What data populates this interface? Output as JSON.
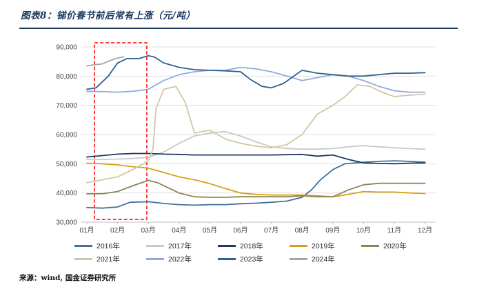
{
  "header": {
    "title": "图表8：锑价春节前后常有上涨（元/吨）"
  },
  "footer": {
    "source": "来源：wind, 国金证券研究所"
  },
  "chart_data": {
    "type": "line",
    "title": "锑价春节前后常有上涨（元/吨）",
    "xlabel": "",
    "ylabel": "",
    "x_ticks": [
      "01月",
      "02月",
      "03月",
      "04月",
      "05月",
      "06月",
      "07月",
      "08月",
      "09月",
      "10月",
      "11月",
      "12月"
    ],
    "y_ticks": [
      "30,000",
      "40,000",
      "50,000",
      "60,000",
      "70,000",
      "80,000",
      "90,000"
    ],
    "ylim": [
      30000,
      90000
    ],
    "xlim": [
      1,
      12.3
    ],
    "grid": "horizontal",
    "legend_position": "bottom",
    "highlight_box": {
      "x_from": 1.25,
      "x_to": 2.95,
      "color": "#FF0000",
      "style": "dashed"
    },
    "legend_rows": [
      [
        "2016年",
        "2017年",
        "2018年",
        "2019年",
        "2020年"
      ],
      [
        "2021年",
        "2022年",
        "2023年",
        "2024年"
      ]
    ],
    "series": [
      {
        "name": "2016年",
        "color": "#41719C",
        "points": [
          [
            1,
            35000
          ],
          [
            1.5,
            34800
          ],
          [
            2,
            35200
          ],
          [
            2.4,
            36800
          ],
          [
            3,
            37000
          ],
          [
            3.5,
            36400
          ],
          [
            4,
            36000
          ],
          [
            4.5,
            35800
          ],
          [
            5,
            36000
          ],
          [
            5.5,
            36000
          ],
          [
            6,
            36300
          ],
          [
            6.5,
            36500
          ],
          [
            7,
            36800
          ],
          [
            7.5,
            37200
          ],
          [
            8,
            38500
          ],
          [
            8.3,
            41000
          ],
          [
            8.6,
            44500
          ],
          [
            9,
            48000
          ],
          [
            9.4,
            50000
          ],
          [
            10,
            50500
          ],
          [
            10.5,
            50800
          ],
          [
            11,
            51000
          ],
          [
            11.5,
            50800
          ],
          [
            12,
            50500
          ]
        ]
      },
      {
        "name": "2017年",
        "color": "#C9C9C9",
        "points": [
          [
            1,
            51500
          ],
          [
            1.5,
            51500
          ],
          [
            2,
            51600
          ],
          [
            2.5,
            51800
          ],
          [
            3,
            52200
          ],
          [
            3.5,
            54000
          ],
          [
            4,
            57000
          ],
          [
            4.5,
            59500
          ],
          [
            5,
            60500
          ],
          [
            5.5,
            61000
          ],
          [
            6,
            59500
          ],
          [
            6.5,
            57500
          ],
          [
            7,
            55800
          ],
          [
            7.5,
            55200
          ],
          [
            8,
            55000
          ],
          [
            8.5,
            55000
          ],
          [
            9,
            55200
          ],
          [
            9.5,
            55800
          ],
          [
            10,
            56200
          ],
          [
            10.5,
            55800
          ],
          [
            11,
            55500
          ],
          [
            11.5,
            55200
          ],
          [
            12,
            55000
          ]
        ]
      },
      {
        "name": "2018年",
        "color": "#203864",
        "points": [
          [
            1,
            52300
          ],
          [
            1.5,
            52800
          ],
          [
            2,
            53300
          ],
          [
            2.5,
            53500
          ],
          [
            3,
            53500
          ],
          [
            3.5,
            53300
          ],
          [
            4,
            53200
          ],
          [
            4.5,
            53000
          ],
          [
            5,
            53000
          ],
          [
            5.5,
            53000
          ],
          [
            6,
            53000
          ],
          [
            6.5,
            53000
          ],
          [
            7,
            53000
          ],
          [
            7.5,
            53100
          ],
          [
            8,
            53200
          ],
          [
            8.5,
            52600
          ],
          [
            9,
            53000
          ],
          [
            9.5,
            51500
          ],
          [
            10,
            50300
          ],
          [
            10.5,
            50100
          ],
          [
            11,
            50000
          ],
          [
            11.5,
            50200
          ],
          [
            12,
            50300
          ]
        ]
      },
      {
        "name": "2019年",
        "color": "#D4A017",
        "points": [
          [
            1,
            50200
          ],
          [
            1.5,
            50000
          ],
          [
            2,
            49600
          ],
          [
            2.5,
            49000
          ],
          [
            3,
            48500
          ],
          [
            3.5,
            47000
          ],
          [
            4,
            45500
          ],
          [
            4.5,
            44500
          ],
          [
            5,
            43200
          ],
          [
            5.5,
            41500
          ],
          [
            6,
            40000
          ],
          [
            6.5,
            39500
          ],
          [
            7,
            39300
          ],
          [
            7.5,
            39300
          ],
          [
            8,
            39300
          ],
          [
            8.5,
            39000
          ],
          [
            9,
            38700
          ],
          [
            9.5,
            39500
          ],
          [
            10,
            40500
          ],
          [
            10.5,
            40300
          ],
          [
            11,
            40300
          ],
          [
            11.5,
            40000
          ],
          [
            12,
            39800
          ]
        ]
      },
      {
        "name": "2020年",
        "color": "#8F8552",
        "points": [
          [
            1,
            39700
          ],
          [
            1.5,
            39700
          ],
          [
            2,
            40500
          ],
          [
            2.5,
            42500
          ],
          [
            3,
            44300
          ],
          [
            3.3,
            43500
          ],
          [
            3.7,
            41500
          ],
          [
            4,
            40000
          ],
          [
            4.5,
            38700
          ],
          [
            5,
            38500
          ],
          [
            5.5,
            38500
          ],
          [
            6,
            38700
          ],
          [
            7,
            38700
          ],
          [
            7.5,
            38700
          ],
          [
            8,
            39000
          ],
          [
            8.5,
            38700
          ],
          [
            9,
            38700
          ],
          [
            9.5,
            41000
          ],
          [
            10,
            42800
          ],
          [
            10.5,
            43300
          ],
          [
            11,
            43300
          ],
          [
            11.5,
            43300
          ],
          [
            12,
            43300
          ]
        ]
      },
      {
        "name": "2021年",
        "color": "#CFC8A2",
        "points": [
          [
            1,
            43500
          ],
          [
            1.5,
            44500
          ],
          [
            2,
            45500
          ],
          [
            2.5,
            48000
          ],
          [
            3,
            51000
          ],
          [
            3.15,
            55000
          ],
          [
            3.25,
            69000
          ],
          [
            3.5,
            75500
          ],
          [
            3.9,
            76500
          ],
          [
            4.2,
            71000
          ],
          [
            4.5,
            60500
          ],
          [
            5,
            61500
          ],
          [
            5.5,
            58500
          ],
          [
            6,
            57000
          ],
          [
            6.5,
            56000
          ],
          [
            7,
            55500
          ],
          [
            7.5,
            56500
          ],
          [
            8,
            60000
          ],
          [
            8.5,
            67000
          ],
          [
            9,
            70000
          ],
          [
            9.4,
            73000
          ],
          [
            9.8,
            77000
          ],
          [
            10.2,
            76500
          ],
          [
            10.6,
            74500
          ],
          [
            11,
            73000
          ],
          [
            11.5,
            73500
          ],
          [
            12,
            73800
          ]
        ]
      },
      {
        "name": "2022年",
        "color": "#8FAADC",
        "points": [
          [
            1,
            74800
          ],
          [
            1.5,
            74700
          ],
          [
            2,
            74500
          ],
          [
            2.5,
            74800
          ],
          [
            3,
            75500
          ],
          [
            3.5,
            78500
          ],
          [
            4,
            80500
          ],
          [
            4.5,
            81500
          ],
          [
            5,
            82000
          ],
          [
            5.5,
            82000
          ],
          [
            6,
            83000
          ],
          [
            6.5,
            82500
          ],
          [
            7,
            81500
          ],
          [
            7.5,
            80000
          ],
          [
            8,
            78500
          ],
          [
            8.5,
            79500
          ],
          [
            9,
            80500
          ],
          [
            9.5,
            80000
          ],
          [
            10,
            78500
          ],
          [
            10.5,
            76500
          ],
          [
            11,
            75000
          ],
          [
            11.5,
            74500
          ],
          [
            12,
            74500
          ]
        ]
      },
      {
        "name": "2023年",
        "color": "#2F6090",
        "points": [
          [
            1,
            75500
          ],
          [
            1.3,
            76000
          ],
          [
            1.7,
            80000
          ],
          [
            2,
            84500
          ],
          [
            2.3,
            86000
          ],
          [
            2.7,
            86000
          ],
          [
            3,
            87000
          ],
          [
            3.2,
            86500
          ],
          [
            3.5,
            84500
          ],
          [
            4,
            83000
          ],
          [
            4.5,
            82200
          ],
          [
            5,
            82000
          ],
          [
            5.5,
            81800
          ],
          [
            6,
            81500
          ],
          [
            6.3,
            79000
          ],
          [
            6.7,
            76500
          ],
          [
            7,
            76000
          ],
          [
            7.4,
            77500
          ],
          [
            7.8,
            80500
          ],
          [
            8,
            82000
          ],
          [
            8.5,
            81000
          ],
          [
            9,
            80500
          ],
          [
            9.5,
            80000
          ],
          [
            10,
            80000
          ],
          [
            10.5,
            80500
          ],
          [
            11,
            81000
          ],
          [
            11.5,
            81000
          ],
          [
            12,
            81200
          ]
        ]
      },
      {
        "name": "2024年",
        "color": "#A6A6A6",
        "points": [
          [
            1,
            83500
          ],
          [
            1.2,
            83800
          ],
          [
            1.5,
            84200
          ],
          [
            1.8,
            85500
          ],
          [
            2,
            86200
          ],
          [
            2.2,
            86600
          ]
        ]
      }
    ]
  }
}
